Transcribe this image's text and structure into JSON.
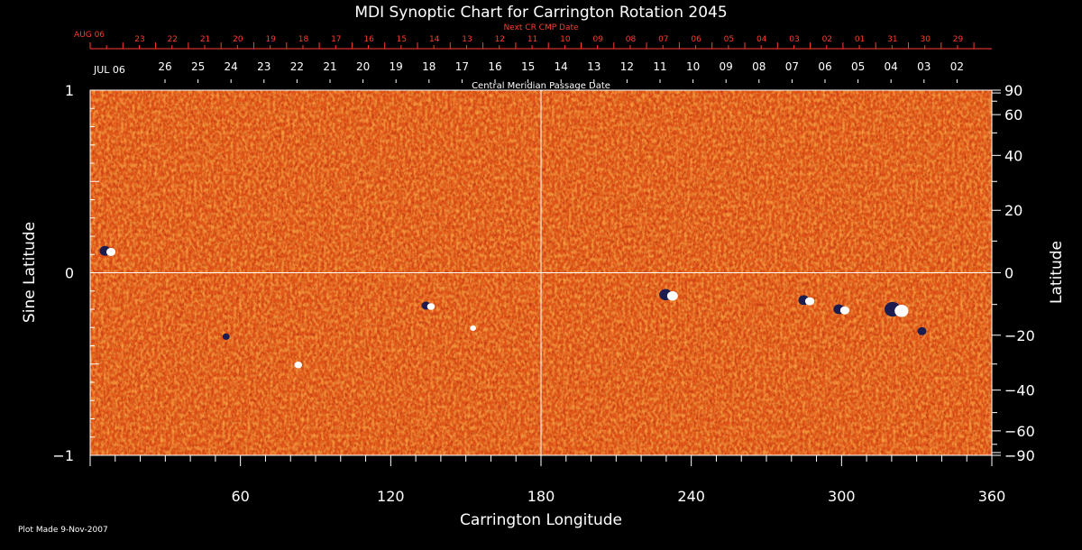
{
  "chart_data": {
    "type": "heatmap",
    "title": "MDI Synoptic Chart for Carrington Rotation 2045",
    "xlabel": "Carrington Longitude",
    "ylabel_left": "Sine Latitude",
    "ylabel_right": "Latitude",
    "xlim": [
      0,
      360
    ],
    "ylim": [
      -1,
      1
    ],
    "x_ticks": [
      60,
      120,
      180,
      240,
      300,
      360
    ],
    "y_ticks_left": [
      {
        "value": 1,
        "label": "1"
      },
      {
        "value": 0,
        "label": "0"
      },
      {
        "value": -1,
        "label": "−1"
      }
    ],
    "y_ticks_right": [
      {
        "deg": 90,
        "label": "90"
      },
      {
        "deg": 60,
        "label": "60"
      },
      {
        "deg": 40,
        "label": "40"
      },
      {
        "deg": 20,
        "label": "20"
      },
      {
        "deg": 0,
        "label": "0"
      },
      {
        "deg": -20,
        "label": "−20"
      },
      {
        "deg": -40,
        "label": "−40"
      },
      {
        "deg": -60,
        "label": "−60"
      },
      {
        "deg": -90,
        "label": "−90"
      }
    ],
    "reference_lines": {
      "longitude": 180,
      "sine_latitude": 0
    },
    "next_cr_axis": {
      "title": "Next CR CMP Date",
      "start_label": "AUG 06",
      "labels": [
        "23",
        "22",
        "21",
        "20",
        "19",
        "18",
        "17",
        "16",
        "15",
        "14",
        "13",
        "12",
        "11",
        "10",
        "09",
        "08",
        "07",
        "06",
        "05",
        "04",
        "03",
        "02",
        "01",
        "31",
        "30",
        "29"
      ]
    },
    "cmp_axis": {
      "title": "Central Meridian Passage Date",
      "start_label": "JUL 06",
      "labels": [
        "26",
        "25",
        "24",
        "23",
        "22",
        "21",
        "20",
        "19",
        "18",
        "17",
        "16",
        "15",
        "14",
        "13",
        "12",
        "11",
        "10",
        "09",
        "08",
        "07",
        "06",
        "05",
        "04",
        "03",
        "02"
      ]
    },
    "active_regions": [
      {
        "lon": 7,
        "sinlat": 0.12,
        "radius": 6,
        "polarity": "mixed"
      },
      {
        "lon": 135,
        "sinlat": -0.18,
        "radius": 5,
        "polarity": "mixed"
      },
      {
        "lon": 152,
        "sinlat": -0.3,
        "radius": 4,
        "polarity": "positive"
      },
      {
        "lon": 231,
        "sinlat": -0.12,
        "radius": 7,
        "polarity": "mixed"
      },
      {
        "lon": 286,
        "sinlat": -0.15,
        "radius": 6,
        "polarity": "mixed"
      },
      {
        "lon": 300,
        "sinlat": -0.2,
        "radius": 6,
        "polarity": "mixed"
      },
      {
        "lon": 322,
        "sinlat": -0.2,
        "radius": 9,
        "polarity": "mixed"
      },
      {
        "lon": 333,
        "sinlat": -0.32,
        "radius": 5,
        "polarity": "negative"
      },
      {
        "lon": 55,
        "sinlat": -0.35,
        "radius": 4,
        "polarity": "negative"
      },
      {
        "lon": 82,
        "sinlat": -0.5,
        "radius": 5,
        "polarity": "positive"
      }
    ],
    "colors": {
      "background": "#000000",
      "map_base": "#e2571b",
      "map_light": "#ffb04a",
      "map_dark": "#a81d14",
      "negative": "#1c1c4e",
      "positive": "#ffffff",
      "axes": "#ffffff",
      "top_axis": "#ff3b2f"
    }
  },
  "footer": {
    "plot_made": "Plot Made  9-Nov-2007"
  }
}
